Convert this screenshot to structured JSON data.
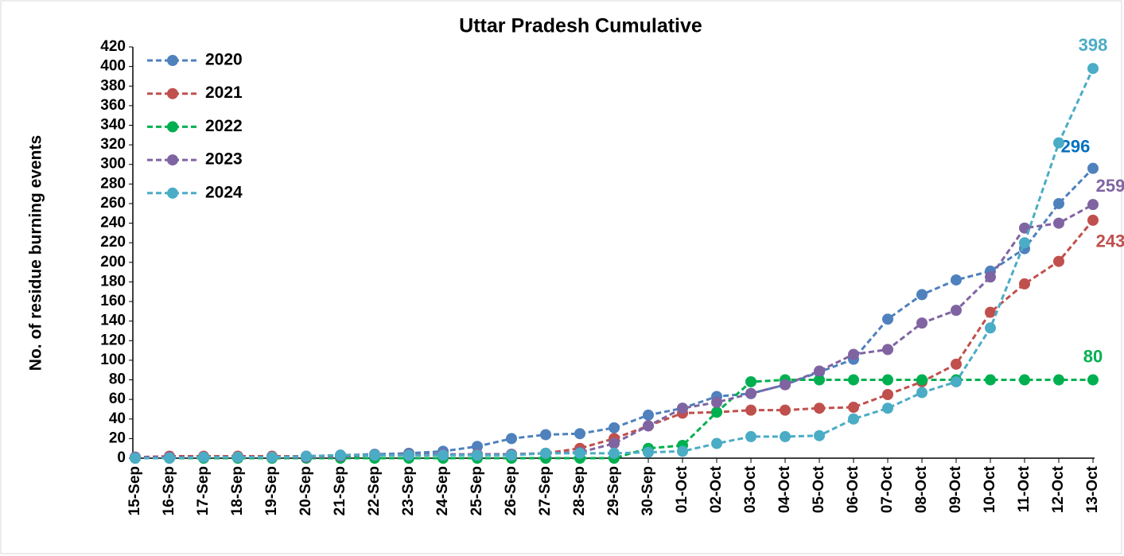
{
  "chart_data": {
    "type": "line",
    "title": "Uttar Pradesh Cumulative",
    "y_label": "No. of residue burning events",
    "categories": [
      "15-Sep",
      "16-Sep",
      "17-Sep",
      "18-Sep",
      "19-Sep",
      "20-Sep",
      "21-Sep",
      "22-Sep",
      "23-Sep",
      "24-Sep",
      "25-Sep",
      "26-Sep",
      "27-Sep",
      "28-Sep",
      "29-Sep",
      "30-Sep",
      "01-Oct",
      "02-Oct",
      "03-Oct",
      "04-Oct",
      "05-Oct",
      "06-Oct",
      "07-Oct",
      "08-Oct",
      "09-Oct",
      "10-Oct",
      "11-Oct",
      "12-Oct",
      "13-Oct"
    ],
    "series": [
      {
        "name": "2020",
        "color": "#4f81bd",
        "label_color": "#0070c0",
        "values": [
          1,
          1,
          1,
          1,
          1,
          2,
          3,
          4,
          5,
          7,
          12,
          20,
          24,
          25,
          31,
          44,
          51,
          63,
          66,
          75,
          88,
          101,
          142,
          167,
          182,
          191,
          214,
          260,
          296
        ]
      },
      {
        "name": "2021",
        "color": "#c0504d",
        "label_color": "#c0504d",
        "values": [
          1,
          2,
          2,
          2,
          2,
          2,
          3,
          3,
          3,
          3,
          4,
          4,
          5,
          10,
          20,
          33,
          46,
          47,
          49,
          49,
          51,
          52,
          65,
          78,
          96,
          149,
          178,
          201,
          243
        ]
      },
      {
        "name": "2022",
        "color": "#00b050",
        "label_color": "#00b050",
        "values": [
          0,
          0,
          0,
          0,
          0,
          0,
          0,
          0,
          0,
          0,
          0,
          0,
          0,
          0,
          0,
          10,
          13,
          47,
          78,
          80,
          80,
          80,
          80,
          80,
          80,
          80,
          80,
          80,
          80
        ]
      },
      {
        "name": "2023",
        "color": "#8064a2",
        "label_color": "#8064a2",
        "values": [
          1,
          1,
          1,
          1,
          1,
          1,
          2,
          3,
          4,
          4,
          4,
          4,
          5,
          6,
          15,
          33,
          51,
          57,
          66,
          75,
          89,
          106,
          111,
          138,
          151,
          185,
          235,
          240,
          259
        ]
      },
      {
        "name": "2024",
        "color": "#4bacc6",
        "label_color": "#4bacc6",
        "values": [
          0,
          0,
          1,
          1,
          1,
          2,
          3,
          3,
          3,
          3,
          3,
          3,
          5,
          5,
          5,
          6,
          7,
          15,
          22,
          22,
          23,
          40,
          51,
          67,
          78,
          133,
          220,
          322,
          398
        ]
      }
    ],
    "ylim": [
      0,
      420
    ],
    "yticks": [
      0,
      20,
      40,
      60,
      80,
      100,
      120,
      140,
      160,
      180,
      200,
      220,
      240,
      260,
      280,
      300,
      320,
      340,
      360,
      380,
      400,
      420
    ],
    "grid": false,
    "legend": "upper left"
  }
}
